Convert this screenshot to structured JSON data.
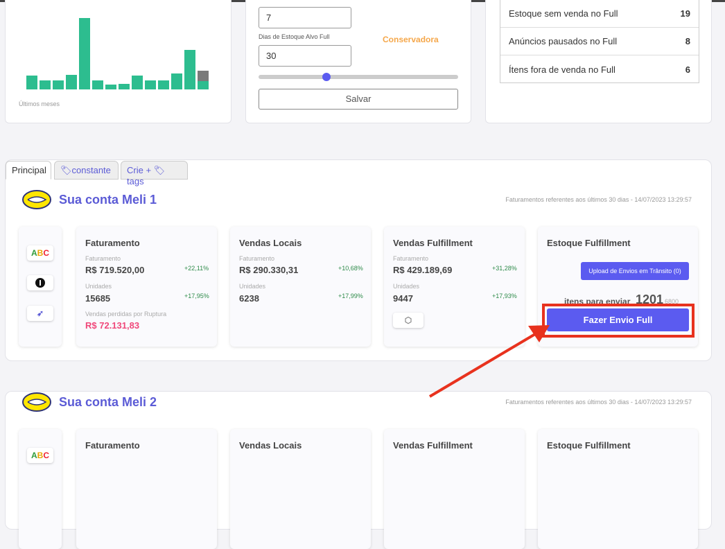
{
  "top_chart": {
    "values": [
      20,
      13,
      13,
      21,
      103,
      13,
      7,
      8,
      20,
      13,
      13,
      23,
      57,
      12
    ],
    "projected": 15,
    "label": "Últimos meses"
  },
  "settings": {
    "first_value": "7",
    "target_days_label": "Dias de Estoque Alvo Full",
    "target_days_value": "30",
    "profile": "Conservadora",
    "save_button": "Salvar"
  },
  "stock_list": [
    {
      "label": "Estoque sem venda no Full",
      "count": 19
    },
    {
      "label": "Anúncios pausados no Full",
      "count": 8
    },
    {
      "label": "Ítens fora de venda no Full",
      "count": 6
    }
  ],
  "tabs": [
    "Principal",
    "constante",
    "Crie +",
    "tags"
  ],
  "accounts": [
    {
      "name": "Sua conta Meli 1",
      "period_note": "Faturamentos referentes aos últimos 30 dias - 14/07/2023 13:29:57",
      "abc": [
        "A",
        "B",
        "C"
      ],
      "billing": {
        "title": "Faturamento",
        "revenue_label": "Faturamento",
        "revenue": "R$ 719.520,00",
        "revenue_change": "+22,11%",
        "units_label": "Unidades",
        "units": 15685,
        "units_change": "+17,95%",
        "lost_label": "Vendas perdidas por Ruptura",
        "lost": "R$ 72.131,83"
      },
      "local": {
        "title": "Vendas Locais",
        "revenue_label": "Faturamento",
        "revenue": "R$ 290.330,31",
        "revenue_change": "+10,68%",
        "units_label": "Unidades",
        "units": 6238,
        "units_change": "+17,99%"
      },
      "fulfillment": {
        "title": "Vendas Fulfillment",
        "revenue_label": "Faturamento",
        "revenue": "R$ 429.189,69",
        "revenue_change": "+31,28%",
        "units_label": "Unidades",
        "units": 9447,
        "units_change": "+17,93%"
      },
      "stock": {
        "title": "Estoque Fulfillment",
        "upload_button": "Upload de Envios em Trânsito (0)",
        "to_send_label": "itens para enviar",
        "to_send": 1201,
        "total": 6800,
        "action_button": "Fazer Envio Full"
      }
    },
    {
      "name": "Sua conta Meli 2",
      "period_note": "Faturamentos referentes aos últimos 30 dias - 14/07/2023 13:29:57",
      "abc": [
        "A",
        "B",
        "C"
      ],
      "billing": {
        "title": "Faturamento"
      },
      "local": {
        "title": "Vendas Locais"
      },
      "fulfillment": {
        "title": "Vendas Fulfillment"
      },
      "stock": {
        "title": "Estoque Fulfillment"
      }
    }
  ]
}
